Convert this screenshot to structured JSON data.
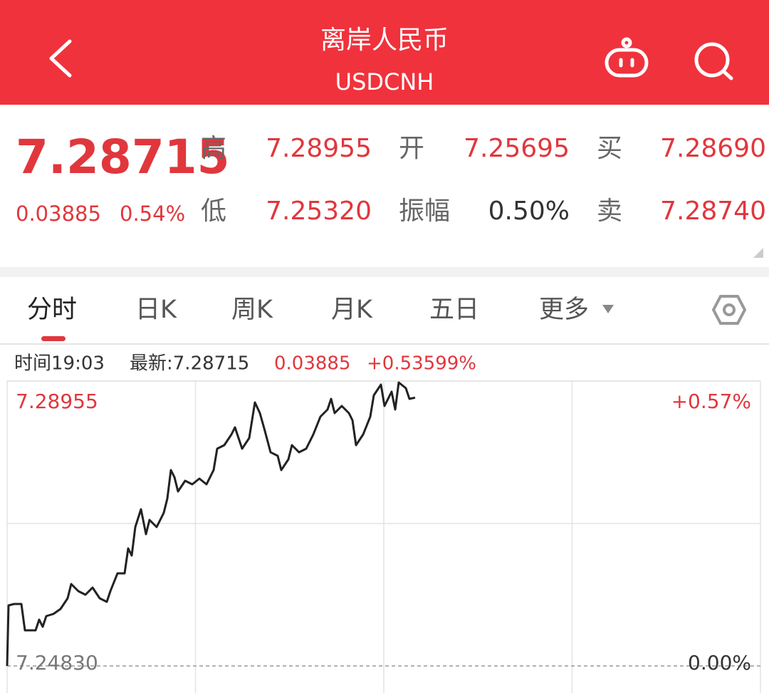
{
  "header": {
    "title": "离岸人民币",
    "subtitle": "USDCNH"
  },
  "quote": {
    "price": "7.28715",
    "change": "0.03885",
    "change_pct": "0.54%",
    "fields": [
      {
        "label": "高",
        "value": "7.28955"
      },
      {
        "label": "开",
        "value": "7.25695"
      },
      {
        "label": "买",
        "value": "7.28690"
      },
      {
        "label": "低",
        "value": "7.25320"
      },
      {
        "label": "振幅",
        "value": "0.50%"
      },
      {
        "label": "卖",
        "value": "7.28740"
      }
    ]
  },
  "tabs": [
    "分时",
    "日K",
    "周K",
    "月K",
    "五日",
    "更多"
  ],
  "info": {
    "time": "时间19:03",
    "latest": "最新:7.28715",
    "change": "0.03885",
    "change_pct": "+0.53599%"
  },
  "chart_data": {
    "type": "line",
    "color": "#222222",
    "xlim": [
      0,
      1058
    ],
    "ylim": [
      7.2483,
      7.28955
    ],
    "yticks": [
      {
        "value": 7.2483,
        "label": "7.24830"
      },
      7.28955
    ],
    "y2lim": [
      0,
      0.57
    ],
    "y2ticks": [
      {
        "value": 0,
        "label": "0.00%"
      },
      {
        "value": 0.57,
        "label": "+0.57%"
      }
    ],
    "x": [
      0,
      2,
      10,
      20,
      25,
      40,
      45,
      50,
      55,
      65,
      75,
      85,
      90,
      100,
      110,
      120,
      130,
      140,
      145,
      155,
      165,
      170,
      175,
      180,
      188,
      195,
      200,
      210,
      220,
      225,
      230,
      235,
      240,
      250,
      260,
      270,
      280,
      290,
      295,
      305,
      315,
      320,
      330,
      340,
      348,
      355,
      362,
      370,
      380,
      385,
      395,
      400,
      410,
      420,
      430,
      440,
      450,
      455,
      460,
      470,
      480,
      485,
      490,
      500,
      510,
      515,
      525,
      530,
      540,
      545,
      550,
      560,
      565,
      573
    ],
    "values": [
      7.2483,
      7.25707,
      7.25727,
      7.25727,
      7.25346,
      7.25346,
      7.255,
      7.25397,
      7.25552,
      7.25583,
      7.25655,
      7.2581,
      7.26016,
      7.25913,
      7.25861,
      7.25964,
      7.2581,
      7.25758,
      7.25913,
      7.26171,
      7.26171,
      7.26532,
      7.26428,
      7.26841,
      7.27099,
      7.26738,
      7.26944,
      7.26841,
      7.27047,
      7.27253,
      7.27666,
      7.27563,
      7.27357,
      7.27511,
      7.2746,
      7.27542,
      7.2746,
      7.27666,
      7.27975,
      7.28027,
      7.28182,
      7.28285,
      7.27975,
      7.2813,
      7.28646,
      7.28491,
      7.28233,
      7.27924,
      7.27872,
      7.27666,
      7.27821,
      7.28027,
      7.27924,
      7.27975,
      7.28182,
      7.28439,
      7.28543,
      7.28697,
      7.28491,
      7.28594,
      7.28491,
      7.28388,
      7.28027,
      7.28182,
      7.28439,
      7.28749,
      7.28903,
      7.28594,
      7.288,
      7.28543,
      7.28934,
      7.28852,
      7.28697,
      7.28715
    ]
  }
}
